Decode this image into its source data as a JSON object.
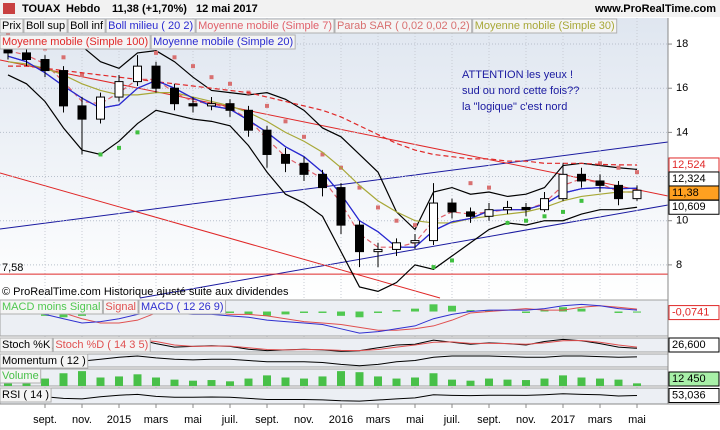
{
  "header": {
    "symbol": "TOUAX",
    "period": "Hebdo",
    "last": "11,38 (+1,70%)",
    "date": "12 mai 2017",
    "site": "www.ProRealTime.com"
  },
  "annotation": [
    "ATTENTION les yeux !",
    "sud ou nord cette fois??",
    "la \"logique\" c'est nord"
  ],
  "footnote": "© ProRealTime.com Historique ajusté suite aux dividendes",
  "chart_data": [
    {
      "type": "candlestick",
      "name": "Prix",
      "color": "#000000",
      "categories": [
        null,
        null,
        "sept.",
        null,
        "nov.",
        null,
        "2015",
        null,
        "mars",
        null,
        "mai",
        null,
        "juil.",
        null,
        "sept.",
        null,
        "nov.",
        null,
        "2016",
        null,
        "mars",
        null,
        "mai",
        null,
        "juil.",
        null,
        "sept.",
        null,
        "nov.",
        null,
        "2017",
        null,
        "mars",
        null,
        "mai"
      ],
      "open": [
        17.9,
        17.6,
        17.3,
        16.8,
        15.2,
        14.6,
        15.6,
        16.3,
        17.0,
        16.0,
        15.3,
        15.2,
        15.3,
        15.0,
        14.1,
        13.0,
        12.6,
        12.1,
        11.5,
        9.8,
        8.6,
        8.7,
        9.0,
        9.1,
        10.8,
        10.4,
        10.2,
        10.5,
        10.6,
        10.5,
        11.0,
        12.1,
        11.8,
        11.6,
        11.0
      ],
      "high": [
        18.1,
        17.9,
        17.5,
        17.0,
        15.6,
        15.8,
        16.6,
        17.5,
        17.2,
        16.2,
        15.6,
        15.6,
        15.5,
        15.2,
        14.3,
        13.3,
        12.9,
        12.3,
        11.7,
        10.0,
        9.0,
        9.2,
        9.4,
        11.7,
        11.0,
        10.6,
        10.8,
        10.9,
        10.8,
        11.3,
        12.6,
        12.4,
        12.1,
        11.8,
        11.6
      ],
      "low": [
        17.3,
        17.0,
        16.5,
        14.9,
        13.0,
        14.4,
        15.4,
        16.1,
        15.8,
        15.0,
        14.9,
        15.0,
        14.7,
        13.8,
        12.4,
        12.2,
        11.8,
        11.1,
        9.4,
        7.9,
        7.9,
        8.4,
        8.7,
        8.9,
        10.1,
        9.9,
        10.0,
        10.3,
        10.2,
        10.4,
        10.9,
        11.5,
        11.3,
        10.7,
        10.9
      ],
      "close": [
        17.6,
        17.3,
        16.8,
        15.2,
        14.6,
        15.6,
        16.3,
        17.0,
        16.0,
        15.3,
        15.2,
        15.3,
        15.0,
        14.1,
        13.0,
        12.6,
        12.1,
        11.5,
        9.8,
        8.6,
        8.7,
        9.0,
        9.1,
        10.8,
        10.4,
        10.2,
        10.5,
        10.6,
        10.5,
        11.0,
        12.1,
        11.8,
        11.6,
        11.0,
        11.38
      ],
      "series": [
        {
          "name": "Boll sup",
          "color": "#000000",
          "style": "line",
          "values": [
            18.3,
            18.2,
            18.0,
            18.0,
            17.9,
            17.2,
            16.9,
            17.6,
            17.7,
            17.2,
            16.5,
            15.9,
            15.8,
            15.7,
            15.8,
            15.5,
            15.0,
            14.2,
            13.8,
            13.0,
            12.2,
            10.4,
            9.6,
            11.3,
            11.5,
            11.2,
            11.3,
            11.1,
            11.2,
            11.5,
            12.5,
            12.6,
            12.5,
            12.4,
            12.324
          ]
        },
        {
          "name": "Boll inf",
          "color": "#000000",
          "style": "line",
          "values": [
            16.6,
            16.2,
            15.4,
            14.2,
            13.2,
            13.0,
            13.6,
            14.4,
            15.0,
            14.8,
            14.6,
            14.5,
            14.3,
            13.4,
            12.2,
            11.2,
            10.8,
            10.2,
            8.6,
            7.0,
            6.8,
            7.2,
            8.0,
            7.8,
            8.4,
            9.0,
            9.6,
            9.9,
            9.8,
            10.0,
            10.0,
            10.3,
            10.5,
            10.5,
            10.609
          ]
        },
        {
          "name": "Boll milieu ( 20 2)",
          "color": "#2a2ad0",
          "style": "line",
          "values": [
            17.45,
            17.2,
            16.7,
            16.1,
            15.55,
            15.1,
            15.25,
            16.0,
            16.35,
            16.0,
            15.55,
            15.2,
            15.05,
            14.55,
            14.0,
            13.35,
            12.9,
            12.2,
            11.2,
            10.0,
            9.5,
            8.8,
            8.8,
            9.55,
            9.95,
            10.1,
            10.45,
            10.5,
            10.5,
            10.75,
            11.25,
            11.45,
            11.5,
            11.45,
            11.47
          ]
        },
        {
          "name": "Moyenne mobile (Simple 7)",
          "color": "#e0606a",
          "style": "dashed",
          "values": [
            17.7,
            17.5,
            17.1,
            16.3,
            15.4,
            15.3,
            15.8,
            16.4,
            16.4,
            15.8,
            15.4,
            15.3,
            15.1,
            14.6,
            13.7,
            12.9,
            12.4,
            11.9,
            10.8,
            9.4,
            8.8,
            8.8,
            9.0,
            10.0,
            10.4,
            10.3,
            10.4,
            10.5,
            10.5,
            10.8,
            11.6,
            11.9,
            11.7,
            11.3,
            11.3
          ]
        },
        {
          "name": "Parab SAR ( 0,02 0,02 0,2)",
          "color": "#d87070",
          "style": "dots",
          "values": [
            18.4,
            18.1,
            17.8,
            17.4,
            16.6,
            13.0,
            13.3,
            14.0,
            17.6,
            17.4,
            17.0,
            16.5,
            16.2,
            15.8,
            15.2,
            14.5,
            13.8,
            13.0,
            12.4,
            11.5,
            10.6,
            10.0,
            9.8,
            7.9,
            8.2,
            11.7,
            11.5,
            9.9,
            10.0,
            10.2,
            10.4,
            10.9,
            12.6,
            12.4,
            12.2
          ]
        },
        {
          "name": "Moyenne mobile (Simple 30)",
          "color": "#a8a838",
          "style": "line",
          "values": [
            17.2,
            17.1,
            16.9,
            16.6,
            16.2,
            15.9,
            15.7,
            15.7,
            15.8,
            15.8,
            15.6,
            15.4,
            15.2,
            14.9,
            14.5,
            14.0,
            13.6,
            13.1,
            12.4,
            11.6,
            10.9,
            10.4,
            10.0,
            9.9,
            9.9,
            10.1,
            10.2,
            10.3,
            10.4,
            10.6,
            10.9,
            11.1,
            11.2,
            11.3,
            11.3
          ]
        },
        {
          "name": "Moyenne mobile (Simple 100)",
          "color": "#e02828",
          "style": "dashed",
          "values": [
            17.0,
            17.0,
            16.9,
            16.8,
            16.7,
            16.6,
            16.5,
            16.4,
            16.3,
            16.2,
            16.1,
            16.0,
            15.9,
            15.8,
            15.6,
            15.4,
            15.2,
            15.0,
            14.7,
            14.3,
            13.9,
            13.5,
            13.2,
            13.0,
            12.9,
            12.8,
            12.8,
            12.7,
            12.7,
            12.6,
            12.6,
            12.6,
            12.55,
            12.53,
            12.524
          ]
        },
        {
          "name": "Moyenne mobile (Simple 20)",
          "color": "#2a2ad0",
          "style": "line",
          "values": [
            17.45,
            17.2,
            16.7,
            16.1,
            15.55,
            15.1,
            15.25,
            16.0,
            16.35,
            16.0,
            15.55,
            15.2,
            15.05,
            14.55,
            14.0,
            13.35,
            12.9,
            12.2,
            11.2,
            10.0,
            9.5,
            8.8,
            8.8,
            9.55,
            9.95,
            10.1,
            10.45,
            10.5,
            10.5,
            10.75,
            11.25,
            11.45,
            11.5,
            11.45,
            11.47
          ]
        }
      ],
      "ylim": [
        6.5,
        19.18
      ],
      "yticks": [
        8,
        10,
        12,
        14,
        16,
        18
      ],
      "grid": true,
      "hline": {
        "value": 7.58,
        "label": "7,58",
        "color": "#e02828"
      },
      "ylabels": [
        {
          "value": 12.524,
          "label": "12,524",
          "color": "#e02828",
          "bg": "#ffffff"
        },
        {
          "value": 12.324,
          "label": "12,324",
          "color": "#000000",
          "bg": "#ffffff"
        },
        {
          "value": 11.38,
          "label": "11,38",
          "color": "#000000",
          "bg": "#ffa020"
        },
        {
          "value": 10.609,
          "label": "10,609",
          "color": "#000000",
          "bg": "#ffffff"
        }
      ]
    },
    {
      "type": "bar",
      "ylim": [
        -1.7,
        0.8
      ],
      "series": [
        {
          "name": "MACD moins Signal",
          "color": "#50c850",
          "style": "bar",
          "values": [
            -0.1,
            -0.2,
            -0.3,
            -0.4,
            -0.3,
            0.1,
            0.3,
            0.4,
            0.1,
            -0.2,
            -0.2,
            -0.1,
            -0.1,
            -0.2,
            -0.3,
            -0.2,
            -0.1,
            -0.1,
            -0.3,
            -0.4,
            -0.1,
            0.1,
            0.2,
            0.5,
            0.4,
            0.1,
            0.1,
            0.0,
            -0.1,
            0.1,
            0.3,
            0.2,
            0.0,
            -0.1,
            -0.0741
          ]
        },
        {
          "name": "Signal",
          "color": "#e05050",
          "style": "line",
          "values": [
            0.3,
            0.2,
            0.1,
            -0.1,
            -0.5,
            -0.8,
            -0.8,
            -0.6,
            -0.1,
            0.1,
            0.0,
            -0.1,
            -0.2,
            -0.2,
            -0.3,
            -0.5,
            -0.7,
            -0.8,
            -0.9,
            -1.1,
            -1.3,
            -1.3,
            -1.2,
            -1.0,
            -0.6,
            -0.1,
            0.0,
            0.1,
            0.2,
            0.1,
            0.1,
            0.3,
            0.4,
            0.3,
            0.17
          ]
        },
        {
          "name": "MACD ( 12 26 9)",
          "color": "#3030d0",
          "style": "line",
          "values": [
            0.2,
            0.0,
            -0.2,
            -0.5,
            -0.8,
            -0.7,
            -0.5,
            -0.2,
            0,
            -0.1,
            -0.2,
            -0.2,
            -0.3,
            -0.4,
            -0.6,
            -0.7,
            -0.8,
            -0.9,
            -1.2,
            -1.5,
            -1.4,
            -1.2,
            -1.0,
            -0.5,
            -0.2,
            0.0,
            0.1,
            0.1,
            0.1,
            0.2,
            0.4,
            0.5,
            0.4,
            0.2,
            0.1
          ]
        }
      ],
      "ylabels": [
        {
          "value": -0.0741,
          "label": "-0,0741",
          "color": "#e02828",
          "bg": "#ffffff"
        }
      ]
    },
    {
      "type": "line",
      "ylim": [
        0,
        100
      ],
      "series": [
        {
          "name": "Stoch %K",
          "color": "#000000",
          "style": "line",
          "values": [
            70,
            50,
            30,
            15,
            20,
            60,
            80,
            90,
            60,
            35,
            40,
            45,
            40,
            20,
            10,
            15,
            20,
            15,
            5,
            10,
            30,
            50,
            55,
            85,
            70,
            55,
            65,
            60,
            50,
            75,
            90,
            80,
            60,
            35,
            26.6
          ]
        },
        {
          "name": "Stoch %D ( 14 3 5)",
          "color": "#e05050",
          "style": "line",
          "values": [
            75,
            60,
            40,
            25,
            20,
            40,
            65,
            85,
            75,
            50,
            40,
            42,
            42,
            30,
            18,
            15,
            18,
            17,
            12,
            10,
            18,
            35,
            50,
            70,
            72,
            62,
            62,
            60,
            55,
            65,
            80,
            82,
            70,
            50,
            35
          ]
        }
      ],
      "ylabels": [
        {
          "value": 26.6,
          "label": "26,600",
          "color": "#000000",
          "bg": "#ffffff"
        }
      ]
    },
    {
      "type": "line",
      "ylim": [
        -7,
        3
      ],
      "series": [
        {
          "name": "Momentum ( 12 )",
          "color": "#000000",
          "style": "line",
          "values": [
            0.5,
            -0.5,
            -1,
            -2,
            -2.5,
            -1,
            0.5,
            1.5,
            0,
            -1,
            -1.5,
            -1,
            -1,
            -2,
            -3,
            -3,
            -3,
            -3.5,
            -5,
            -6,
            -5,
            -3,
            -2,
            0.5,
            1.5,
            1.5,
            1.5,
            1,
            0.5,
            0.5,
            1.5,
            1.5,
            1,
            0.5,
            0.8
          ]
        }
      ]
    },
    {
      "type": "bar",
      "ylim": [
        0,
        80000
      ],
      "series": [
        {
          "name": "Volume",
          "color": "#48c048",
          "style": "bar",
          "values": [
            30000,
            25000,
            35000,
            60000,
            70000,
            40000,
            45000,
            55000,
            40000,
            30000,
            25000,
            28000,
            22000,
            35000,
            50000,
            40000,
            35000,
            45000,
            70000,
            65000,
            45000,
            35000,
            40000,
            60000,
            30000,
            25000,
            35000,
            30000,
            28000,
            35000,
            50000,
            40000,
            35000,
            30000,
            12450
          ]
        }
      ],
      "ylabels": [
        {
          "value": 12450,
          "label": "12 450",
          "color": "#000000",
          "bg": "#a8f0a8"
        }
      ]
    },
    {
      "type": "line",
      "ylim": [
        0,
        100
      ],
      "series": [
        {
          "name": "RSI ( 14 )",
          "color": "#000000",
          "style": "line",
          "values": [
            55,
            50,
            45,
            35,
            32,
            45,
            55,
            60,
            48,
            42,
            42,
            44,
            42,
            35,
            28,
            28,
            28,
            26,
            20,
            18,
            25,
            32,
            38,
            58,
            54,
            52,
            55,
            55,
            54,
            58,
            64,
            60,
            58,
            50,
            53.036
          ]
        }
      ],
      "ylabels": [
        {
          "value": 53.036,
          "label": "53,036",
          "color": "#000000",
          "bg": "#ffffff"
        }
      ]
    }
  ]
}
